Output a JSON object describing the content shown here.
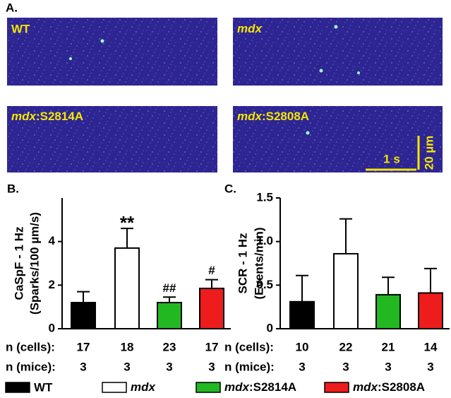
{
  "panel_a": {
    "label": "A.",
    "images": [
      {
        "label": "WT"
      },
      {
        "label": "mdx"
      },
      {
        "label": "mdx:S2814A"
      },
      {
        "label": "mdx:S2808A"
      }
    ],
    "scale_y": "20 µm",
    "scale_x": "1 s"
  },
  "legend": {
    "entries": [
      {
        "name": "WT",
        "color": "#000000"
      },
      {
        "name": "mdx",
        "color": "#ffffff"
      },
      {
        "name": "mdx:S2814A",
        "color": "#22b822"
      },
      {
        "name": "mdx:S2808A",
        "color": "#ee1c1c"
      }
    ]
  },
  "chart_data": [
    {
      "type": "bar",
      "panel": "B.",
      "ylabel": [
        "CaSpF - 1 Hz",
        "(Sparks/100 µm/s)"
      ],
      "ylim": [
        0,
        6
      ],
      "yticks": [
        0,
        2,
        4
      ],
      "values": [
        1.2,
        3.7,
        1.2,
        1.85
      ],
      "errors": [
        0.5,
        0.9,
        0.25,
        0.4
      ],
      "annotations": [
        null,
        "**",
        "##",
        "#"
      ],
      "table": [
        {
          "label": "n (cells):",
          "values": [
            17,
            18,
            23,
            17
          ]
        },
        {
          "label": "n (mice):",
          "values": [
            3,
            3,
            3,
            3
          ]
        }
      ]
    },
    {
      "type": "bar",
      "panel": "C.",
      "ylabel": [
        "SCR - 1 Hz",
        "(Events/min)"
      ],
      "ylim": [
        0,
        1.5
      ],
      "yticks": [
        0,
        0.5,
        {
          "value": 1,
          "label": "1.0"
        },
        1.5
      ],
      "values": [
        0.31,
        0.86,
        0.39,
        0.41
      ],
      "errors": [
        0.3,
        0.4,
        0.2,
        0.28
      ],
      "annotations": [
        null,
        null,
        null,
        null
      ],
      "table": [
        {
          "label": "n (cells):",
          "values": [
            10,
            22,
            21,
            14
          ]
        },
        {
          "label": "n (mice):",
          "values": [
            3,
            3,
            3,
            3
          ]
        }
      ]
    }
  ]
}
